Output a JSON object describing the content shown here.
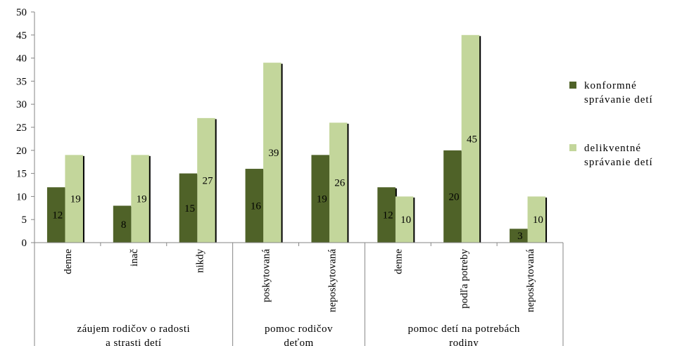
{
  "chart_data": {
    "type": "bar",
    "ylim": [
      0,
      50
    ],
    "yticks": [
      0,
      5,
      10,
      15,
      20,
      25,
      30,
      35,
      40,
      45,
      50
    ],
    "categories": [
      "denne",
      "inač",
      "nikdy",
      "poskytovaná",
      "neposkytovaná",
      "denne",
      "podľa potreby",
      "neposkytovaná"
    ],
    "groups": [
      {
        "label_line1": "záujem rodičov o radosti",
        "label_line2": "a strasti detí",
        "size": 3
      },
      {
        "label_line1": "pomoc rodičov",
        "label_line2": "deťom",
        "size": 2
      },
      {
        "label_line1": "pomoc detí na potrebách",
        "label_line2": "rodiny",
        "size": 3
      }
    ],
    "series": [
      {
        "name_line1": "konformné",
        "name_line2": "správanie detí",
        "color": "#4f6228",
        "values": [
          12,
          8,
          15,
          16,
          19,
          12,
          20,
          3
        ]
      },
      {
        "name_line1": "delikventné",
        "name_line2": "správanie detí",
        "color": "#c3d69b",
        "values": [
          19,
          19,
          27,
          39,
          26,
          10,
          45,
          10
        ]
      }
    ],
    "legend_position": "right"
  }
}
